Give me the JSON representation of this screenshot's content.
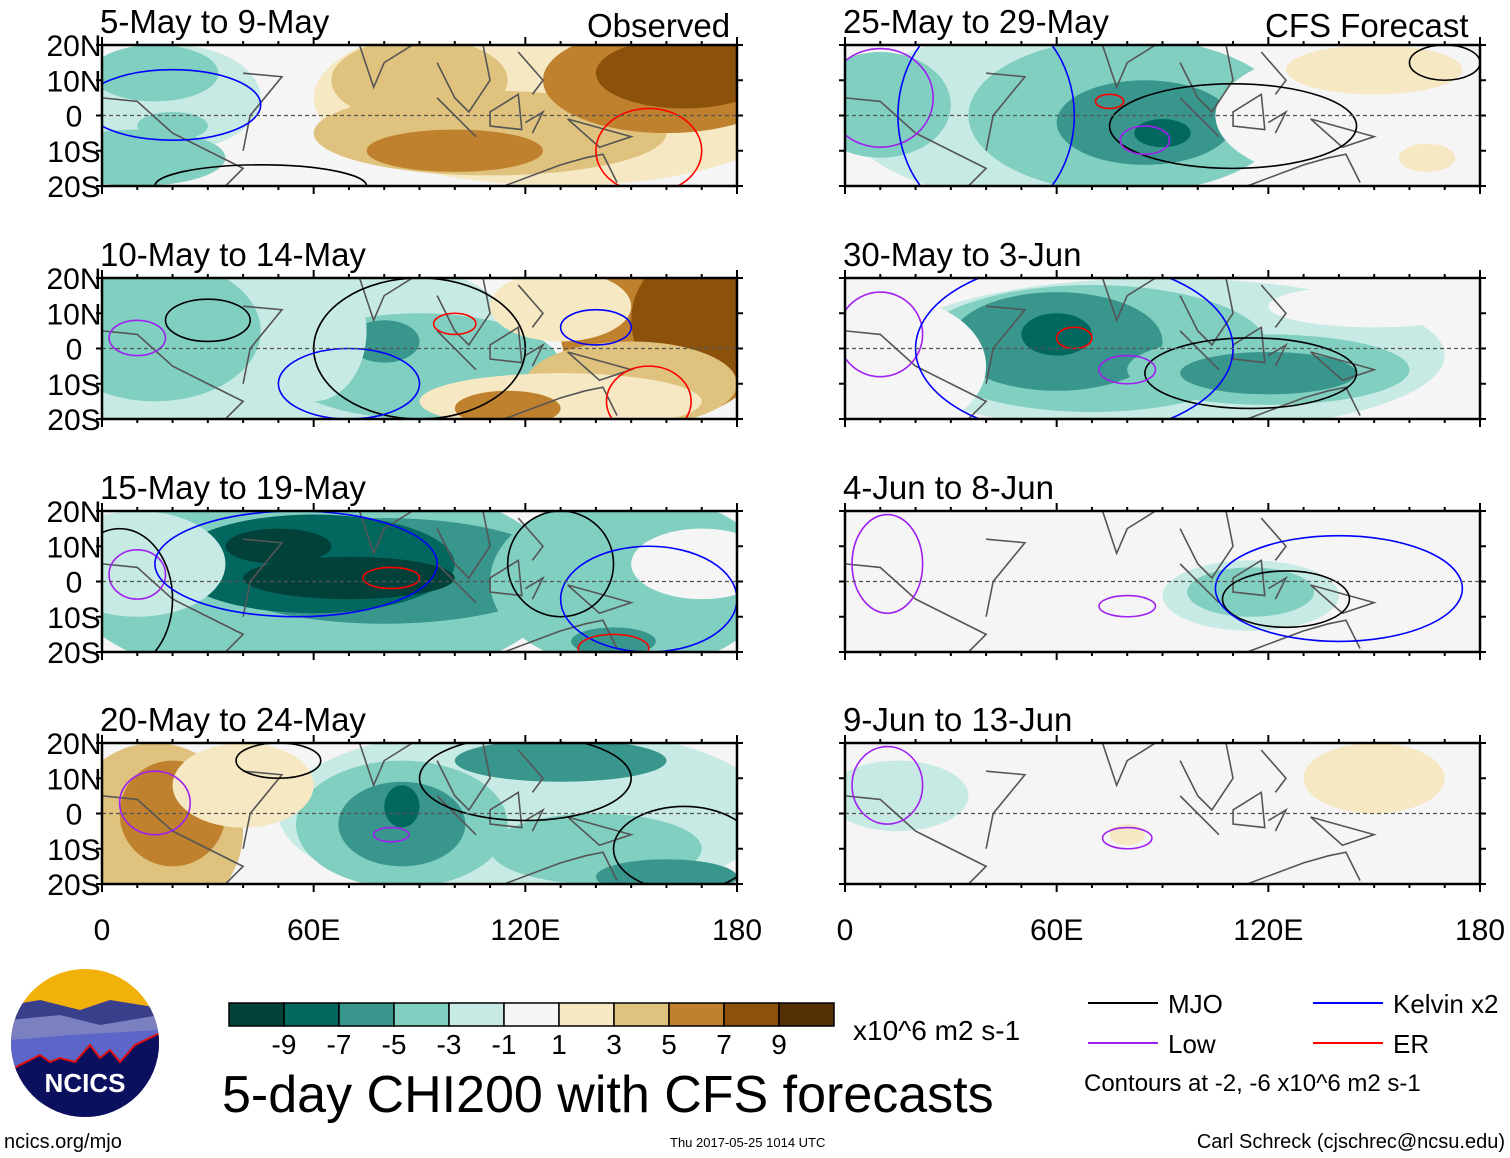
{
  "chart_data": {
    "type": "heatmap",
    "title": "5-day CHI200 with CFS forecasts",
    "units": "x10^6 m2 s-1",
    "column_labels": [
      "Observed",
      "CFS Forecast"
    ],
    "x_ticks": [
      "0",
      "60E",
      "120E",
      "180"
    ],
    "y_ticks": [
      "20N",
      "10N",
      "0",
      "10S",
      "20S"
    ],
    "xlim_deg_east": [
      0,
      180
    ],
    "ylim_deg_north": [
      -20,
      20
    ],
    "colorbar": {
      "labels": [
        "-9",
        "-7",
        "-5",
        "-3",
        "-1",
        "1",
        "3",
        "5",
        "7",
        "9"
      ],
      "colors": [
        "#01413a",
        "#02675f",
        "#38968c",
        "#80cfc1",
        "#c7eae4",
        "#f5f5f5",
        "#f6e8c3",
        "#dfc27d",
        "#bf812d",
        "#8c510a",
        "#543005"
      ]
    },
    "panels": [
      {
        "label": "5-May to 9-May",
        "column": 0,
        "row": 0,
        "fills": [
          [
            80,
            0,
            100,
            30,
            1
          ],
          [
            130,
            5,
            70,
            25,
            3
          ],
          [
            110,
            -5,
            50,
            12,
            5
          ],
          [
            90,
            10,
            25,
            12,
            5
          ],
          [
            160,
            10,
            35,
            15,
            7
          ],
          [
            165,
            12,
            25,
            10,
            9
          ],
          [
            100,
            -10,
            25,
            6,
            7
          ],
          [
            20,
            5,
            25,
            15,
            -1
          ],
          [
            15,
            12,
            18,
            8,
            -3
          ],
          [
            10,
            -12,
            25,
            8,
            -3
          ],
          [
            20,
            -3,
            10,
            4,
            -3
          ]
        ],
        "contours": {
          "MJO": [
            [
              45,
              -20,
              30,
              6
            ]
          ],
          "Kelvin": [
            [
              20,
              3,
              25,
              10
            ]
          ],
          "ER": [
            [
              155,
              -10,
              15,
              12
            ]
          ]
        }
      },
      {
        "label": "10-May to 14-May",
        "column": 0,
        "row": 1,
        "fills": [
          [
            50,
            0,
            70,
            30,
            -1
          ],
          [
            15,
            5,
            30,
            20,
            -3
          ],
          [
            90,
            -5,
            40,
            15,
            -3
          ],
          [
            80,
            2,
            10,
            6,
            -5
          ],
          [
            160,
            5,
            30,
            25,
            7
          ],
          [
            170,
            8,
            20,
            20,
            9
          ],
          [
            150,
            -10,
            30,
            12,
            5
          ],
          [
            130,
            -15,
            40,
            8,
            3
          ],
          [
            115,
            -17,
            15,
            5,
            7
          ],
          [
            130,
            12,
            20,
            10,
            3
          ],
          [
            60,
            5,
            15,
            20,
            -1
          ]
        ],
        "contours": {
          "MJO": [
            [
              30,
              8,
              12,
              6
            ],
            [
              90,
              0,
              30,
              20
            ]
          ],
          "Low": [
            [
              10,
              3,
              8,
              5
            ]
          ],
          "Kelvin": [
            [
              140,
              6,
              10,
              5
            ],
            [
              70,
              -10,
              20,
              10
            ]
          ],
          "ER": [
            [
              100,
              7,
              6,
              3
            ],
            [
              155,
              -15,
              12,
              10
            ]
          ]
        }
      },
      {
        "label": "15-May to 19-May",
        "column": 0,
        "row": 2,
        "fills": [
          [
            60,
            0,
            70,
            30,
            -3
          ],
          [
            80,
            3,
            50,
            15,
            -5
          ],
          [
            60,
            5,
            40,
            14,
            -7
          ],
          [
            70,
            1,
            30,
            6,
            -9
          ],
          [
            50,
            10,
            15,
            5,
            -9
          ],
          [
            150,
            0,
            40,
            25,
            -3
          ],
          [
            145,
            -17,
            12,
            4,
            -5
          ],
          [
            10,
            5,
            25,
            15,
            -1
          ],
          [
            170,
            5,
            20,
            10,
            1
          ]
        ],
        "contours": {
          "MJO": [
            [
              130,
              5,
              15,
              15
            ],
            [
              5,
              -5,
              15,
              20
            ]
          ],
          "Low": [
            [
              10,
              2,
              8,
              7
            ]
          ],
          "Kelvin": [
            [
              55,
              5,
              40,
              15
            ],
            [
              155,
              -5,
              25,
              15
            ]
          ],
          "ER": [
            [
              82,
              1,
              8,
              3
            ],
            [
              145,
              -19,
              10,
              4
            ]
          ]
        }
      },
      {
        "label": "20-May to 24-May",
        "column": 0,
        "row": 3,
        "fills": [
          [
            120,
            0,
            70,
            25,
            -1
          ],
          [
            85,
            -3,
            30,
            18,
            -3
          ],
          [
            85,
            -3,
            18,
            12,
            -5
          ],
          [
            85,
            2,
            5,
            6,
            -7
          ],
          [
            130,
            15,
            30,
            6,
            -5
          ],
          [
            140,
            -10,
            30,
            10,
            -3
          ],
          [
            15,
            -5,
            25,
            25,
            5
          ],
          [
            20,
            0,
            15,
            15,
            7
          ],
          [
            40,
            8,
            20,
            12,
            3
          ],
          [
            160,
            -18,
            20,
            5,
            -5
          ]
        ],
        "contours": {
          "MJO": [
            [
              120,
              10,
              30,
              12
            ],
            [
              165,
              -10,
              20,
              12
            ],
            [
              50,
              15,
              12,
              5
            ]
          ],
          "Low": [
            [
              15,
              3,
              10,
              9
            ],
            [
              82,
              -6,
              5,
              2
            ]
          ]
        }
      },
      {
        "label": "25-May to 29-May",
        "column": 1,
        "row": 0,
        "fills": [
          [
            60,
            0,
            60,
            25,
            -1
          ],
          [
            80,
            0,
            45,
            22,
            -3
          ],
          [
            85,
            -2,
            25,
            12,
            -5
          ],
          [
            90,
            -5,
            8,
            4,
            -7
          ],
          [
            10,
            3,
            20,
            15,
            -3
          ],
          [
            150,
            0,
            45,
            20,
            1
          ],
          [
            150,
            13,
            25,
            7,
            3
          ],
          [
            165,
            -12,
            8,
            4,
            3
          ]
        ],
        "contours": {
          "MJO": [
            [
              110,
              -3,
              35,
              12
            ],
            [
              170,
              15,
              10,
              5
            ]
          ],
          "Low": [
            [
              10,
              5,
              15,
              14
            ],
            [
              85,
              -7,
              7,
              4
            ]
          ],
          "Kelvin": [
            [
              40,
              0,
              25,
              30
            ]
          ],
          "ER": [
            [
              75,
              4,
              4,
              2
            ]
          ]
        }
      },
      {
        "label": "30-May to 3-Jun",
        "column": 1,
        "row": 1,
        "fills": [
          [
            90,
            -2,
            80,
            22,
            -1
          ],
          [
            70,
            0,
            50,
            18,
            -3
          ],
          [
            60,
            2,
            30,
            14,
            -5
          ],
          [
            60,
            4,
            10,
            6,
            -7
          ],
          [
            120,
            -6,
            40,
            10,
            -3
          ],
          [
            120,
            -7,
            25,
            6,
            -5
          ],
          [
            150,
            12,
            30,
            6,
            1
          ],
          [
            10,
            -5,
            30,
            20,
            1
          ]
        ],
        "contours": {
          "MJO": [
            [
              115,
              -7,
              30,
              10
            ]
          ],
          "Low": [
            [
              10,
              4,
              12,
              12
            ],
            [
              80,
              -6,
              8,
              4
            ]
          ],
          "Kelvin": [
            [
              65,
              0,
              45,
              25
            ]
          ],
          "ER": [
            [
              65,
              3,
              5,
              3
            ]
          ]
        }
      },
      {
        "label": "4-Jun to 8-Jun",
        "column": 1,
        "row": 2,
        "fills": [
          [
            20,
            0,
            30,
            25,
            1
          ],
          [
            150,
            0,
            40,
            25,
            1
          ],
          [
            115,
            -4,
            25,
            10,
            -1
          ],
          [
            115,
            -3,
            18,
            7,
            -3
          ],
          [
            85,
            10,
            15,
            10,
            1
          ]
        ],
        "contours": {
          "MJO": [
            [
              125,
              -5,
              18,
              8
            ]
          ],
          "Low": [
            [
              12,
              5,
              10,
              14
            ],
            [
              80,
              -7,
              8,
              3
            ]
          ],
          "Kelvin": [
            [
              140,
              -2,
              35,
              15
            ]
          ]
        }
      },
      {
        "label": "9-Jun to 13-Jun",
        "column": 1,
        "row": 3,
        "fills": [
          [
            100,
            -3,
            80,
            15,
            1
          ],
          [
            145,
            5,
            40,
            20,
            1
          ],
          [
            150,
            10,
            20,
            10,
            3
          ],
          [
            80,
            -6,
            5,
            3,
            3
          ],
          [
            15,
            5,
            20,
            10,
            -1
          ]
        ],
        "contours": {
          "Low": [
            [
              12,
              8,
              10,
              11
            ],
            [
              80,
              -7,
              7,
              3
            ]
          ]
        }
      }
    ]
  },
  "legend": {
    "items": [
      {
        "key": "MJO",
        "label": "MJO",
        "color": "#000000"
      },
      {
        "key": "Low",
        "label": "Low",
        "color": "#a020f0"
      },
      {
        "key": "Kelvin",
        "label": "Kelvin x2",
        "color": "#0000ff"
      },
      {
        "key": "ER",
        "label": "ER",
        "color": "#ff0000"
      }
    ],
    "contour_note": "Contours at -2, -6 x10^6 m2 s-1"
  },
  "footer": {
    "logo_text": "NCICS",
    "url": "ncics.org/mjo",
    "timestamp": "Thu 2017-05-25 1014 UTC",
    "credit": "Carl Schreck (cjschrec@ncsu.edu)"
  }
}
